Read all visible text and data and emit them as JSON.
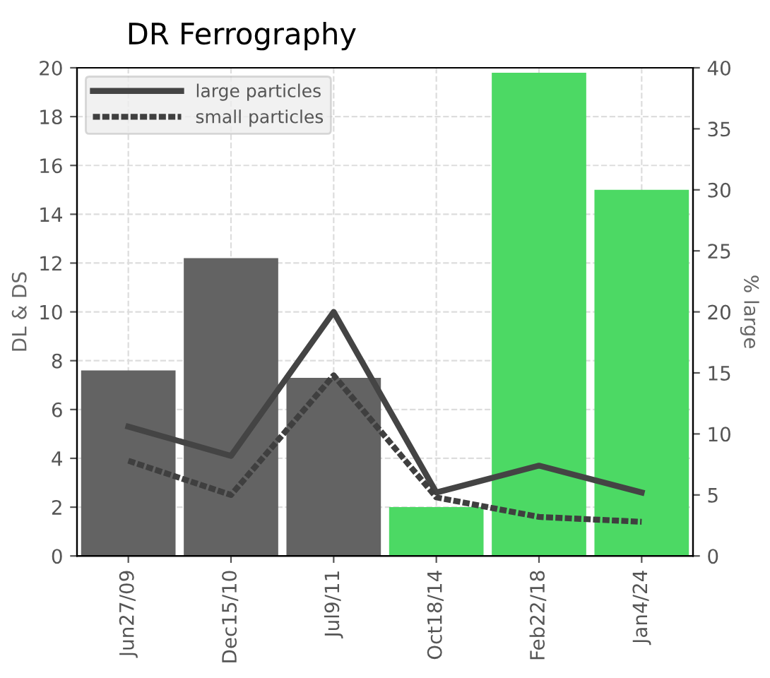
{
  "chart_data": {
    "type": "bar",
    "title": "DR Ferrography",
    "ylabel": "DL & DS",
    "y2label": "% large",
    "categories": [
      "Jun27/09",
      "Dec15/10",
      "Jul9/11",
      "Oct18/14",
      "Feb22/18",
      "Jan4/24"
    ],
    "series": [
      {
        "axis": "y2",
        "colors": [
          "#636363",
          "#636363",
          "#636363",
          "#4cd964",
          "#4cd964",
          "#4cd964"
        ],
        "values": [
          15.2,
          24.4,
          14.6,
          4,
          39.6,
          30
        ]
      },
      {
        "type": "line",
        "name": "large particles",
        "color": "#444444",
        "line_style": "solid",
        "values": [
          5.3,
          4.1,
          10,
          2.6,
          3.7,
          2.6
        ]
      },
      {
        "type": "line",
        "name": "small particles",
        "color": "#3f3f3f",
        "line_style": "dotted",
        "values": [
          3.9,
          2.5,
          7.4,
          2.4,
          1.6,
          1.4
        ]
      }
    ],
    "ylim": [
      0,
      20
    ],
    "yticks": [
      0,
      2,
      4,
      6,
      8,
      10,
      12,
      14,
      16,
      18,
      20
    ],
    "y2lim": [
      0,
      40
    ],
    "y2ticks": [
      0,
      5,
      10,
      15,
      20,
      25,
      30,
      35,
      40
    ],
    "grid": true,
    "legend": "top left",
    "marker": "none"
  }
}
